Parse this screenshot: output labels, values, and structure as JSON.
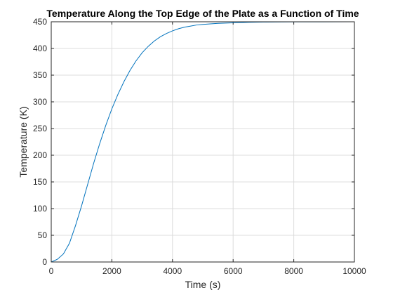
{
  "chart_data": {
    "type": "line",
    "title": "Temperature Along the Top Edge of the Plate as a Function of Time",
    "xlabel": "Time (s)",
    "ylabel": "Temperature (K)",
    "xlim": [
      0,
      10000
    ],
    "ylim": [
      0,
      450
    ],
    "xticks": [
      0,
      2000,
      4000,
      6000,
      8000,
      10000
    ],
    "yticks": [
      0,
      50,
      100,
      150,
      200,
      250,
      300,
      350,
      400,
      450
    ],
    "grid": true,
    "line_color": "#0072BD",
    "series": [
      {
        "x": [
          0,
          200,
          400,
          600,
          800,
          1000,
          1200,
          1400,
          1600,
          1800,
          2000,
          2200,
          2400,
          2600,
          2800,
          3000,
          3200,
          3400,
          3600,
          3800,
          4000,
          4200,
          4400,
          4600,
          4800,
          5000,
          5500,
          6000,
          6500,
          7000,
          7500,
          8000,
          9000,
          10000
        ],
        "values": [
          0,
          5,
          15,
          35,
          68,
          105,
          145,
          185,
          222,
          256,
          287,
          314,
          338,
          359,
          377,
          392,
          404,
          414,
          422,
          428,
          433,
          437,
          440,
          442,
          444,
          445,
          447,
          448,
          449,
          449.5,
          449.7,
          449.8,
          449.9,
          450
        ]
      }
    ]
  }
}
